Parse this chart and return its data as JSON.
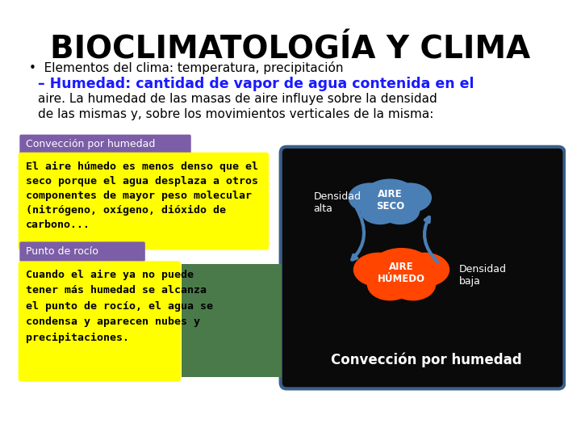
{
  "title": "BIOCLIMATOLOGÍA Y CLIMA",
  "bullet_text": "•  Elementos del clima: temperatura, precipitación",
  "humedad_line1": "– Humedad: cantidad de vapor de agua contenida en el",
  "humedad_line2": "aire. La humedad de las masas de aire influye sobre la densidad",
  "humedad_line3": "de las mismas y, sobre los movimientos verticales de la misma:",
  "box1_title": "Convección por humedad",
  "box1_title_bg": "#7b5ea7",
  "box1_text": "El aire húmedo es menos denso que el\nseco porque el agua desplaza a otros\ncomponentes de mayor peso molecular\n(nitrógeno, oxígeno, dióxido de\ncarbono...",
  "box1_bg": "#ffff00",
  "box2_title": "Punto de rocío",
  "box2_title_bg": "#7b5ea7",
  "box2_text": "Cuando el aire ya no puede\ntener más humedad se alcanza\nel punto de rocío, el agua se\ncondensa y aparecen nubes y\nprecipitaciones.",
  "box2_bg": "#ffff00",
  "right_panel_bg": "#0a0a0a",
  "right_panel_border": "#3a5f8a",
  "densidad_alta": "Densidad\nalta",
  "densidad_baja": "Densidad\nbaja",
  "aire_seco": "AIRE\nSECO",
  "aire_humedo": "AIRE\nHÚMEDO",
  "conveccion_label": "Convección por humedad",
  "aire_seco_cloud_color": "#4a7fb5",
  "aire_humedo_cloud_color": "#ff4500",
  "arrow_color": "#4a7fb5",
  "bg_color": "#ffffff"
}
